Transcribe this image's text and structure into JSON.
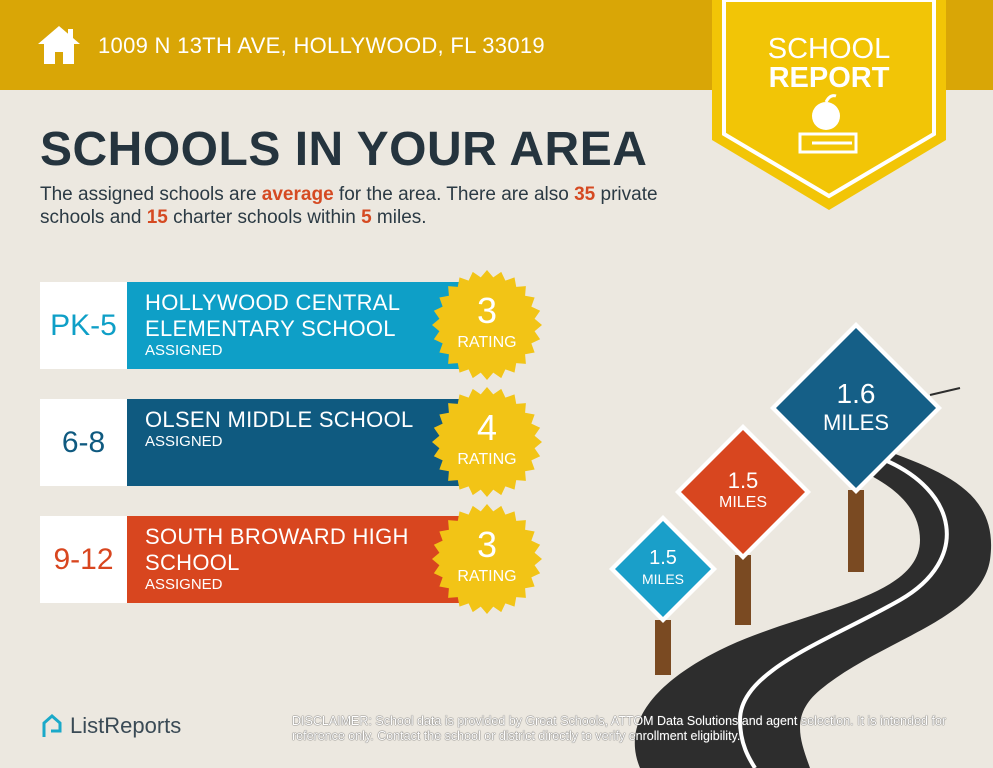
{
  "header": {
    "address": "1009 N 13TH AVE, HOLLYWOOD, FL 33019",
    "icon": "home-icon"
  },
  "badge": {
    "line1": "SCHOOL",
    "line2": "REPORT",
    "icon": "apple-books-icon"
  },
  "title": "SCHOOLS IN YOUR AREA",
  "summary": {
    "p1": "The assigned schools are ",
    "quality": "average",
    "p2": " for the area. There are also ",
    "private": "35",
    "p3": " private schools and ",
    "charter": "15",
    "p4": " charter schools within ",
    "miles": "5",
    "p5": " miles."
  },
  "schools": [
    {
      "grades": "PK-5",
      "name1": "HOLLYWOOD CENTRAL",
      "name2": "ELEMENTARY SCHOOL",
      "status": "ASSIGNED",
      "rating": "3",
      "rating_label": "RATING",
      "color": "#0e9fc7"
    },
    {
      "grades": "6-8",
      "name1": "OLSEN MIDDLE SCHOOL",
      "name2": "",
      "status": "ASSIGNED",
      "rating": "4",
      "rating_label": "RATING",
      "color": "#0f5a80"
    },
    {
      "grades": "9-12",
      "name1": "SOUTH BROWARD HIGH",
      "name2": "SCHOOL",
      "status": "ASSIGNED",
      "rating": "3",
      "rating_label": "RATING",
      "color": "#d8461f"
    }
  ],
  "distances": [
    {
      "value": "1.5",
      "unit": "MILES",
      "color": "#1a9fc9"
    },
    {
      "value": "1.5",
      "unit": "MILES",
      "color": "#d8461f"
    },
    {
      "value": "1.6",
      "unit": "MILES",
      "color": "#155f87"
    }
  ],
  "footer": {
    "logo": "ListReports",
    "disclaimer_label": "DISCLAIMER:",
    "disclaimer": " School data is provided by Great Schools, ATTOM Data Solutions and agent selection. It is intended for reference only. Contact the school or district directly to verify enrollment eligibility."
  }
}
